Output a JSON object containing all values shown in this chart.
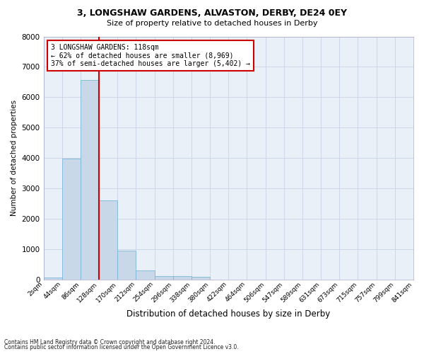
{
  "title1": "3, LONGSHAW GARDENS, ALVASTON, DERBY, DE24 0EY",
  "title2": "Size of property relative to detached houses in Derby",
  "xlabel": "Distribution of detached houses by size in Derby",
  "ylabel": "Number of detached properties",
  "footer1": "Contains HM Land Registry data © Crown copyright and database right 2024.",
  "footer2": "Contains public sector information licensed under the Open Government Licence v3.0.",
  "bar_values": [
    80,
    3980,
    6580,
    2620,
    960,
    310,
    130,
    110,
    90,
    0,
    0,
    0,
    0,
    0,
    0,
    0,
    0,
    0,
    0,
    0
  ],
  "bin_labels": [
    "2sqm",
    "44sqm",
    "86sqm",
    "128sqm",
    "170sqm",
    "212sqm",
    "254sqm",
    "296sqm",
    "338sqm",
    "380sqm",
    "422sqm",
    "464sqm",
    "506sqm",
    "547sqm",
    "589sqm",
    "631sqm",
    "673sqm",
    "715sqm",
    "757sqm",
    "799sqm",
    "841sqm"
  ],
  "bar_color": "#c8d8e8",
  "bar_edgecolor": "#7ab8d8",
  "vline_color": "#cc0000",
  "vline_x": 2.5,
  "annotation_text": "3 LONGSHAW GARDENS: 118sqm\n← 62% of detached houses are smaller (8,969)\n37% of semi-detached houses are larger (5,402) →",
  "annotation_box_color": "#cc0000",
  "ylim": [
    0,
    8000
  ],
  "yticks": [
    0,
    1000,
    2000,
    3000,
    4000,
    5000,
    6000,
    7000,
    8000
  ],
  "grid_color": "#c8d4e8",
  "plot_bg_color": "#eaf0f8"
}
